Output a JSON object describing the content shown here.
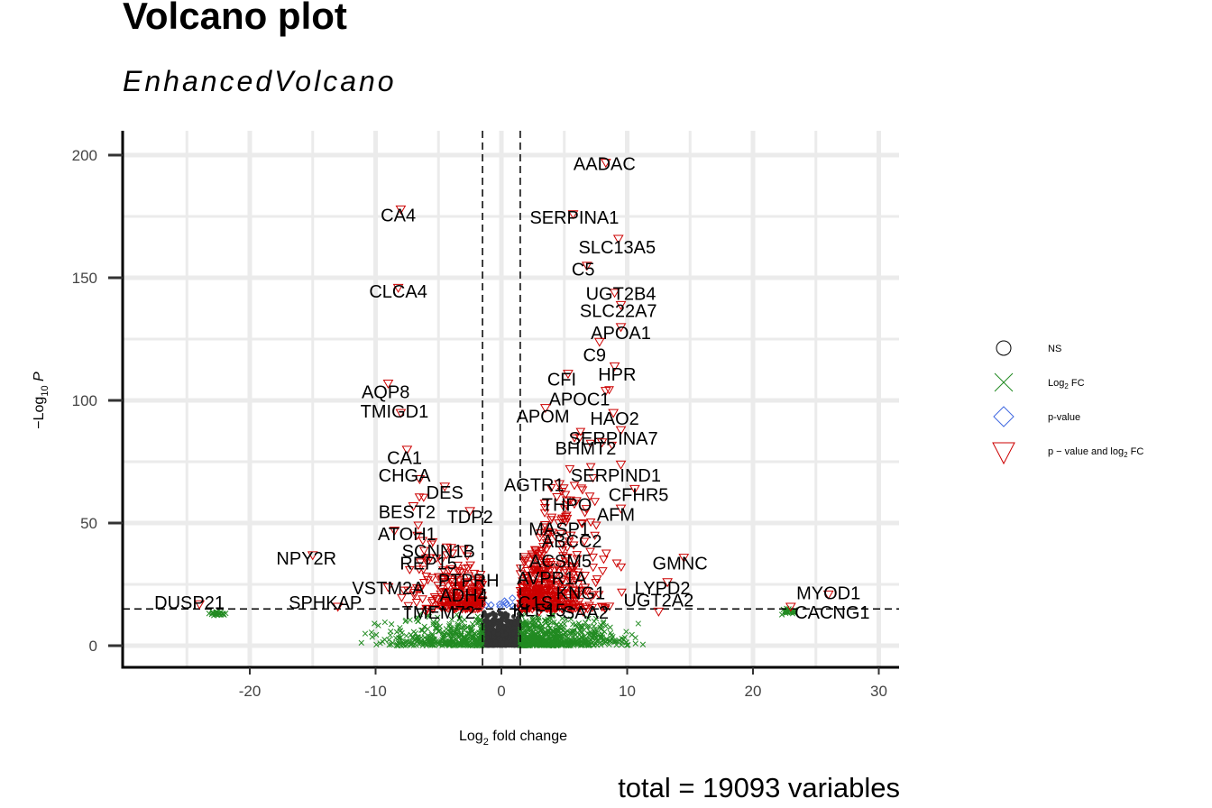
{
  "chart_data": {
    "type": "scatter",
    "title": "Volcano plot",
    "subtitle": "EnhancedVolcano",
    "caption": "total = 19093 variables",
    "xlabel_main": "Log",
    "xlabel_sub": "2",
    "xlabel_rest": " fold change",
    "ylabel_pre": "−Log",
    "ylabel_sub": "10",
    "ylabel_post": " P",
    "xlim": [
      -29,
      31
    ],
    "ylim": [
      -16,
      210
    ],
    "x_ticks": [
      -20,
      -10,
      0,
      10,
      20,
      30
    ],
    "x_tick_labels": [
      "-20",
      "-10",
      "0",
      "10",
      "20",
      "30"
    ],
    "y_ticks": [
      0,
      50,
      100,
      150,
      200
    ],
    "y_tick_labels": [
      "0",
      "50",
      "100",
      "150",
      "200"
    ],
    "fc_cutoff": 1.5,
    "p_cutoff_log10": 15,
    "grid": true,
    "legend_position": "right",
    "legend": [
      {
        "key": "ns",
        "label": "NS",
        "color": "#333333",
        "shape": "circle"
      },
      {
        "key": "fc",
        "label_main": "Log",
        "label_sub": "2",
        "label_rest": " FC",
        "color": "#228B22",
        "shape": "cross"
      },
      {
        "key": "p",
        "label": "p-value",
        "color": "#4169E1",
        "shape": "diamond"
      },
      {
        "key": "both",
        "label_main": "p − value and log",
        "label_sub": "2",
        "label_rest": " FC",
        "color": "#CC0000",
        "shape": "triangle"
      }
    ],
    "labeled_genes": [
      {
        "name": "AADAC",
        "x": 8.3,
        "y": 197,
        "lx": 8.2,
        "ly": 194
      },
      {
        "name": "SERPINA1",
        "x": 5.7,
        "y": 176,
        "lx": 5.8,
        "ly": 172
      },
      {
        "name": "SLC13A5",
        "x": 9.3,
        "y": 166,
        "lx": 9.2,
        "ly": 160
      },
      {
        "name": "C5",
        "x": 6.8,
        "y": 155,
        "lx": 6.5,
        "ly": 151
      },
      {
        "name": "UGT2B4",
        "x": 9.0,
        "y": 144,
        "lx": 9.5,
        "ly": 141
      },
      {
        "name": "SLC22A7",
        "x": 9.5,
        "y": 139,
        "lx": 9.3,
        "ly": 134
      },
      {
        "name": "APOA1",
        "x": 9.5,
        "y": 130,
        "lx": 9.5,
        "ly": 125
      },
      {
        "name": "C9",
        "x": 7.8,
        "y": 124,
        "lx": 7.4,
        "ly": 116
      },
      {
        "name": "HPR",
        "x": 9.0,
        "y": 114,
        "lx": 9.2,
        "ly": 108
      },
      {
        "name": "CFI",
        "x": 5.3,
        "y": 111,
        "lx": 4.8,
        "ly": 106
      },
      {
        "name": "APOC1",
        "x": 8.3,
        "y": 104,
        "lx": 6.2,
        "ly": 98
      },
      {
        "name": "APOM",
        "x": 3.5,
        "y": 97,
        "lx": 3.3,
        "ly": 91
      },
      {
        "name": "HAO2",
        "x": 8.9,
        "y": 95,
        "lx": 9.0,
        "ly": 90
      },
      {
        "name": "SERPINA7",
        "x": 9.5,
        "y": 88,
        "lx": 8.9,
        "ly": 82
      },
      {
        "name": "BHMT2",
        "x": 8.0,
        "y": 83,
        "lx": 6.7,
        "ly": 78
      },
      {
        "name": "SERPIND1",
        "x": 9.5,
        "y": 74,
        "lx": 9.1,
        "ly": 67
      },
      {
        "name": "AGTR1",
        "x": 4.6,
        "y": 66,
        "lx": 2.6,
        "ly": 63
      },
      {
        "name": "CFHR5",
        "x": 10.6,
        "y": 64,
        "lx": 10.9,
        "ly": 59
      },
      {
        "name": "THPO",
        "x": 5.8,
        "y": 58,
        "lx": 5.2,
        "ly": 55
      },
      {
        "name": "AFM",
        "x": 9.5,
        "y": 56,
        "lx": 9.1,
        "ly": 51
      },
      {
        "name": "MASP1",
        "x": 4.6,
        "y": 50,
        "lx": 4.6,
        "ly": 45
      },
      {
        "name": "ABCC2",
        "x": 5.5,
        "y": 45,
        "lx": 5.6,
        "ly": 40
      },
      {
        "name": "ACSM5",
        "x": 5.2,
        "y": 36,
        "lx": 4.7,
        "ly": 32
      },
      {
        "name": "GMNC",
        "x": 14.5,
        "y": 36,
        "lx": 14.2,
        "ly": 31
      },
      {
        "name": "AVPR1A",
        "x": 4.2,
        "y": 31,
        "lx": 4.0,
        "ly": 25
      },
      {
        "name": "LYPD2",
        "x": 13.2,
        "y": 26,
        "lx": 12.8,
        "ly": 21
      },
      {
        "name": "C1S",
        "x": 2.5,
        "y": 21,
        "lx": 2.7,
        "ly": 15
      },
      {
        "name": "KNG1",
        "x": 5.8,
        "y": 21,
        "lx": 6.3,
        "ly": 19
      },
      {
        "name": "KLF15",
        "x": 3.0,
        "y": 14,
        "lx": 3.0,
        "ly": 12
      },
      {
        "name": "SAA2",
        "x": 6.5,
        "y": 14,
        "lx": 6.7,
        "ly": 11
      },
      {
        "name": "UGT2A2",
        "x": 12.5,
        "y": 14,
        "lx": 12.5,
        "ly": 16
      },
      {
        "name": "MYOD1",
        "x": 26.0,
        "y": 21,
        "lx": 26.0,
        "ly": 19
      },
      {
        "name": "CACNG1",
        "x": 23.0,
        "y": 16,
        "lx": 26.3,
        "ly": 11
      },
      {
        "name": "DUSP21",
        "x": -24.0,
        "y": 17,
        "lx": -24.8,
        "ly": 15
      },
      {
        "name": "SPHKAP",
        "x": -13.0,
        "y": 16,
        "lx": -14.0,
        "ly": 15
      },
      {
        "name": "TMEM72",
        "x": -6.0,
        "y": 14,
        "lx": -5.0,
        "ly": 11
      },
      {
        "name": "VSTM2A",
        "x": -9.0,
        "y": 24,
        "lx": -9.0,
        "ly": 21
      },
      {
        "name": "PTPRH",
        "x": -4.0,
        "y": 27,
        "lx": -2.6,
        "ly": 24
      },
      {
        "name": "ADH4",
        "x": -2.0,
        "y": 21,
        "lx": -3.0,
        "ly": 18
      },
      {
        "name": "REP15",
        "x": -6.0,
        "y": 35,
        "lx": -5.8,
        "ly": 31
      },
      {
        "name": "SCNN1B",
        "x": -4.0,
        "y": 40,
        "lx": -5.0,
        "ly": 36
      },
      {
        "name": "NPY2R",
        "x": -15.0,
        "y": 37,
        "lx": -15.5,
        "ly": 33
      },
      {
        "name": "ATOH1",
        "x": -8.5,
        "y": 47,
        "lx": -7.5,
        "ly": 43
      },
      {
        "name": "BEST2",
        "x": -7.0,
        "y": 57,
        "lx": -7.5,
        "ly": 52
      },
      {
        "name": "TDP2",
        "x": -2.5,
        "y": 55,
        "lx": -2.5,
        "ly": 50
      },
      {
        "name": "DES",
        "x": -4.5,
        "y": 65,
        "lx": -4.5,
        "ly": 60
      },
      {
        "name": "CHGA",
        "x": -6.5,
        "y": 68,
        "lx": -7.7,
        "ly": 67
      },
      {
        "name": "CA1",
        "x": -7.5,
        "y": 80,
        "lx": -7.7,
        "ly": 74
      },
      {
        "name": "AQP8",
        "x": -9.0,
        "y": 107,
        "lx": -9.2,
        "ly": 101
      },
      {
        "name": "TMIGD1",
        "x": -8.0,
        "y": 95,
        "lx": -8.5,
        "ly": 93
      },
      {
        "name": "CLCA4",
        "x": -8.2,
        "y": 146,
        "lx": -8.2,
        "ly": 142
      },
      {
        "name": "CA4",
        "x": -8.0,
        "y": 178,
        "lx": -8.2,
        "ly": 173
      }
    ]
  }
}
